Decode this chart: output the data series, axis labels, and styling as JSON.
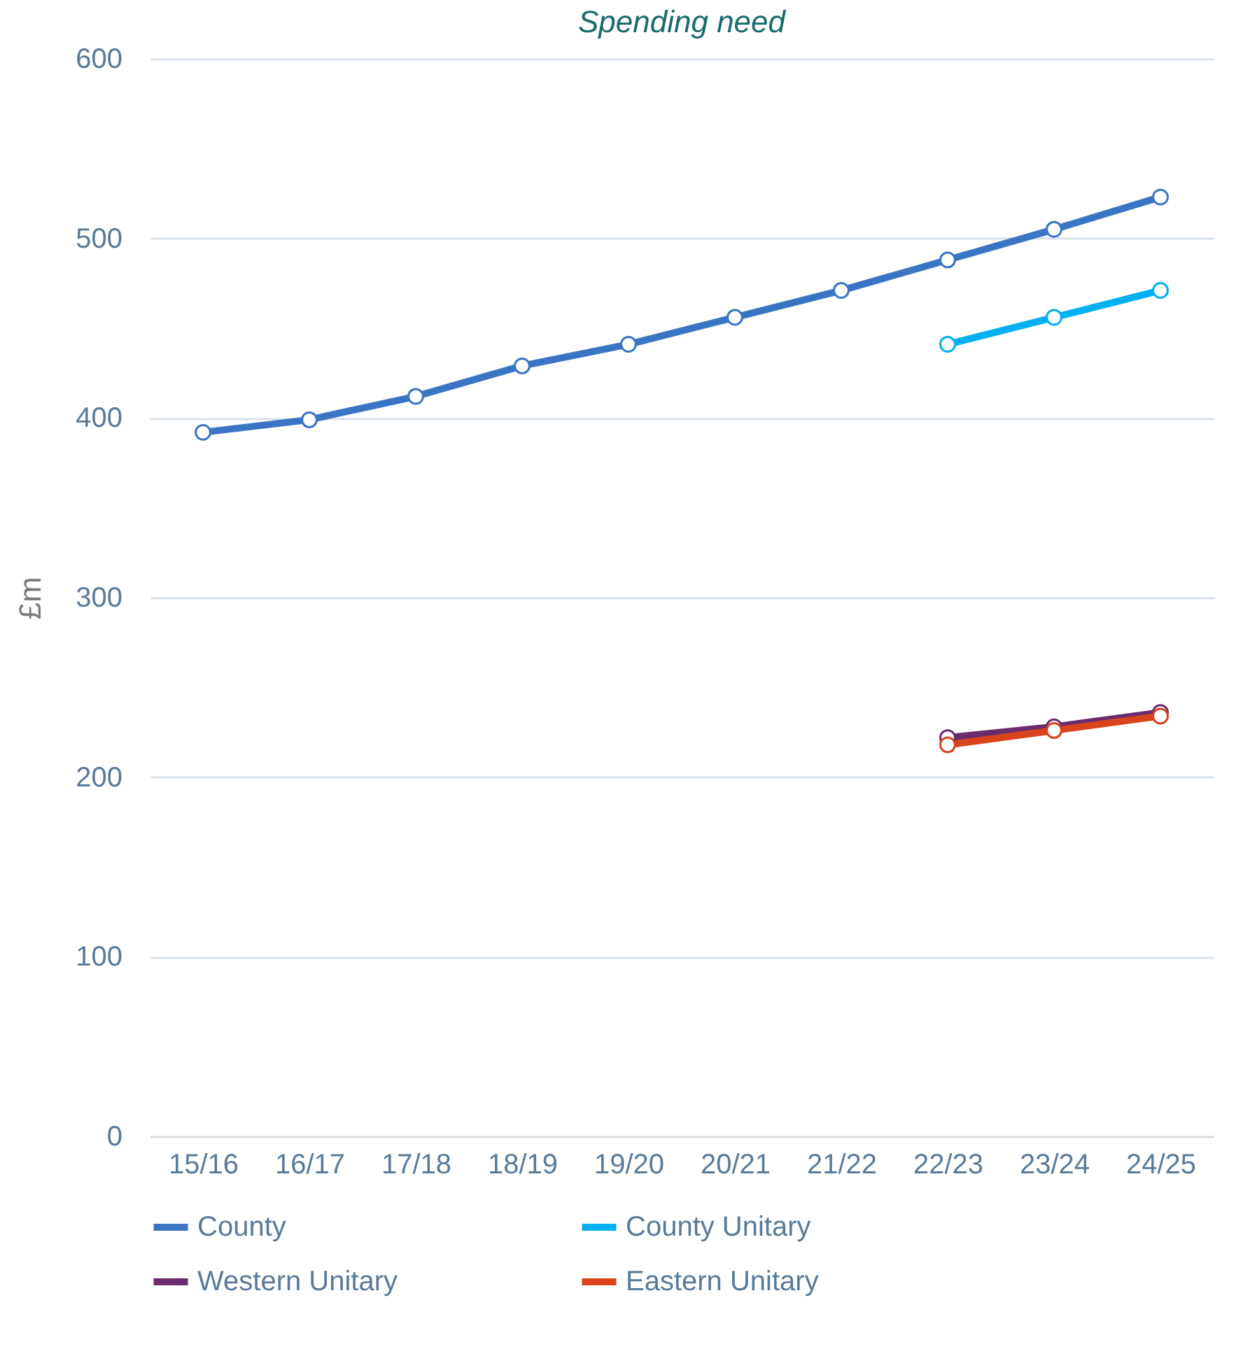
{
  "chart_data": {
    "type": "line",
    "title": "Spending need",
    "ylabel": "£m",
    "categories": [
      "15/16",
      "16/17",
      "17/18",
      "18/19",
      "19/20",
      "20/21",
      "21/22",
      "22/23",
      "23/24",
      "24/25"
    ],
    "series": [
      {
        "name": "County",
        "color": "#3a75c4",
        "values": [
          392,
          399,
          412,
          429,
          441,
          456,
          471,
          488,
          505,
          523
        ]
      },
      {
        "name": "County Unitary",
        "color": "#00b0f0",
        "values": [
          null,
          null,
          null,
          null,
          null,
          null,
          null,
          441,
          456,
          471
        ]
      },
      {
        "name": "Western Unitary",
        "color": "#6b2c6e",
        "values": [
          null,
          null,
          null,
          null,
          null,
          null,
          null,
          222,
          228,
          236
        ]
      },
      {
        "name": "Eastern Unitary",
        "color": "#d9441c",
        "values": [
          null,
          null,
          null,
          null,
          null,
          null,
          null,
          218,
          226,
          234
        ]
      }
    ],
    "ylim": [
      0,
      600
    ],
    "yticks": [
      0,
      100,
      200,
      300,
      400,
      500,
      600
    ],
    "grid": "y",
    "legend": "bottom",
    "marker": "circle",
    "line_style": "solid"
  }
}
